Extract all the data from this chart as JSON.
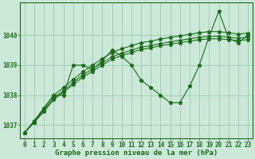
{
  "title": "Graphe pression niveau de la mer (hPa)",
  "background_color": "#cbe8d8",
  "line_color": "#1a6b1a",
  "grid_color": "#9dc9ae",
  "xlim": [
    -0.5,
    23.5
  ],
  "ylim": [
    1036.55,
    1041.1
  ],
  "yticks": [
    1037,
    1038,
    1039,
    1040
  ],
  "xticks": [
    0,
    1,
    2,
    3,
    4,
    5,
    6,
    7,
    8,
    9,
    10,
    11,
    12,
    13,
    14,
    15,
    16,
    17,
    18,
    19,
    20,
    21,
    22,
    23
  ],
  "series": [
    {
      "x": [
        0,
        1,
        2,
        3,
        4,
        5,
        6,
        7,
        8,
        9,
        10,
        11,
        12,
        13,
        14,
        15,
        16,
        17,
        18,
        19,
        20,
        21,
        22,
        23
      ],
      "y": [
        1036.75,
        1037.1,
        1037.55,
        1038.0,
        1038.0,
        1039.0,
        1039.0,
        1038.85,
        1039.15,
        1039.5,
        1039.3,
        1039.0,
        1038.5,
        1038.25,
        1038.0,
        1037.75,
        1037.75,
        1038.3,
        1039.0,
        1039.95,
        1040.8,
        1039.9,
        1039.75,
        1040.0
      ]
    },
    {
      "x": [
        0,
        1,
        2,
        3,
        4,
        5,
        6,
        7,
        8,
        9,
        10,
        11,
        12,
        13,
        14,
        15,
        16,
        17,
        18,
        19,
        20,
        21,
        22,
        23
      ],
      "y": [
        1036.75,
        1037.1,
        1037.45,
        1037.85,
        1038.1,
        1038.35,
        1038.6,
        1038.8,
        1039.0,
        1039.2,
        1039.32,
        1039.42,
        1039.52,
        1039.58,
        1039.65,
        1039.7,
        1039.75,
        1039.8,
        1039.85,
        1039.88,
        1039.88,
        1039.85,
        1039.82,
        1039.85
      ]
    },
    {
      "x": [
        0,
        1,
        2,
        3,
        4,
        5,
        6,
        7,
        8,
        9,
        10,
        11,
        12,
        13,
        14,
        15,
        16,
        17,
        18,
        19,
        20,
        21,
        22,
        23
      ],
      "y": [
        1036.75,
        1037.12,
        1037.5,
        1037.9,
        1038.15,
        1038.42,
        1038.68,
        1038.88,
        1039.08,
        1039.28,
        1039.4,
        1039.5,
        1039.6,
        1039.65,
        1039.72,
        1039.78,
        1039.83,
        1039.88,
        1039.93,
        1039.96,
        1039.96,
        1039.93,
        1039.9,
        1039.93
      ]
    },
    {
      "x": [
        0,
        1,
        2,
        3,
        4,
        5,
        6,
        7,
        8,
        9,
        10,
        11,
        12,
        13,
        14,
        15,
        16,
        17,
        18,
        19,
        20,
        21,
        22,
        23
      ],
      "y": [
        1036.75,
        1037.15,
        1037.58,
        1038.0,
        1038.25,
        1038.52,
        1038.78,
        1039.0,
        1039.22,
        1039.42,
        1039.55,
        1039.65,
        1039.75,
        1039.8,
        1039.87,
        1039.93,
        1039.98,
        1040.03,
        1040.08,
        1040.12,
        1040.12,
        1040.08,
        1040.04,
        1040.07
      ]
    }
  ]
}
